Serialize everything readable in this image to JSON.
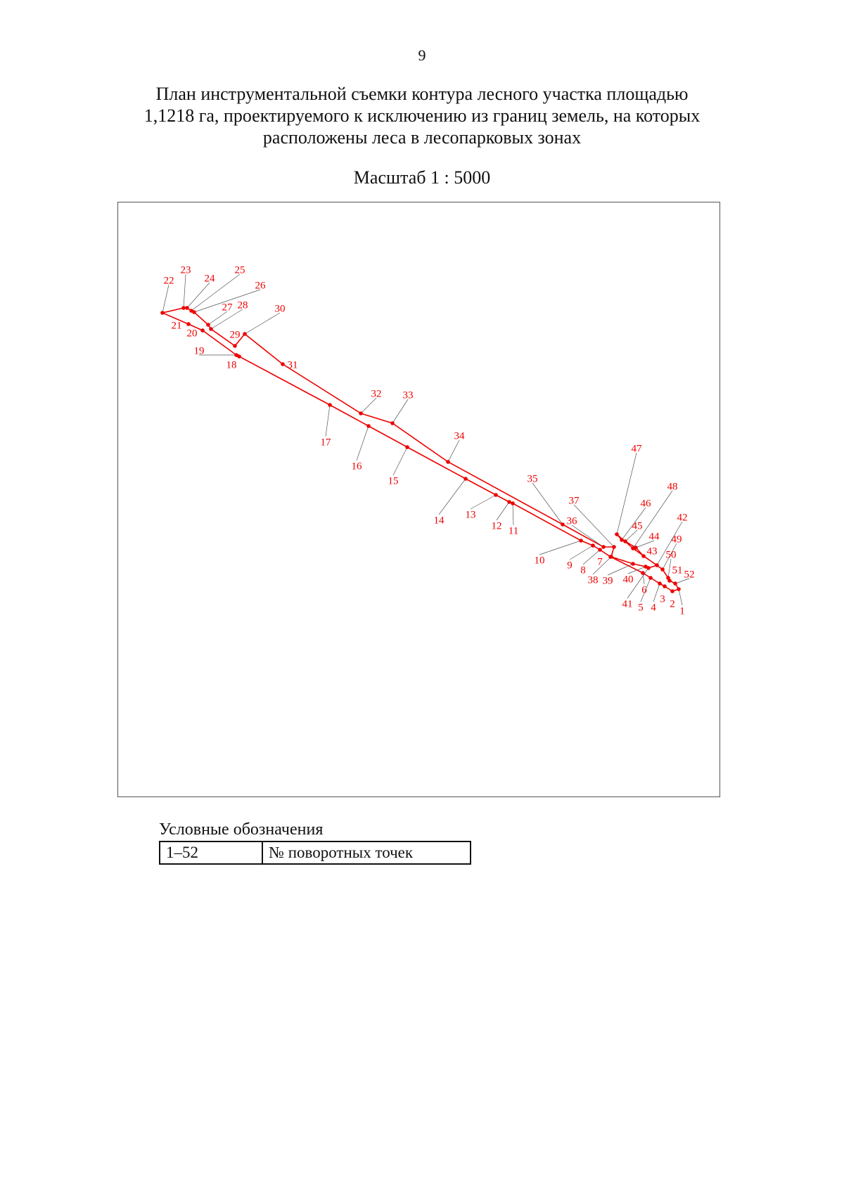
{
  "page_number": "9",
  "title": [
    "План инструментальной съемки контура лесного участка площадью",
    "1,1218 га, проектируемого к исключению из границ земель, на которых",
    "расположены леса в лесопарковых зонах"
  ],
  "scale": "Масштаб 1 : 5000",
  "map": {
    "points": [
      "1",
      "2",
      "3",
      "4",
      "5",
      "6",
      "7",
      "8",
      "9",
      "10",
      "11",
      "12",
      "13",
      "14",
      "15",
      "16",
      "17",
      "18",
      "19",
      "20",
      "21",
      "22",
      "23",
      "24",
      "25",
      "26",
      "27",
      "28",
      "29",
      "30",
      "31",
      "32",
      "33",
      "34",
      "35",
      "36",
      "37",
      "38",
      "39",
      "40",
      "41",
      "42",
      "43",
      "44",
      "45",
      "46",
      "47",
      "48",
      "49",
      "50",
      "51",
      "52"
    ]
  },
  "legend": {
    "caption": "Условные обозначения",
    "rows": [
      [
        "1–52",
        "№ поворотных точек"
      ]
    ]
  }
}
